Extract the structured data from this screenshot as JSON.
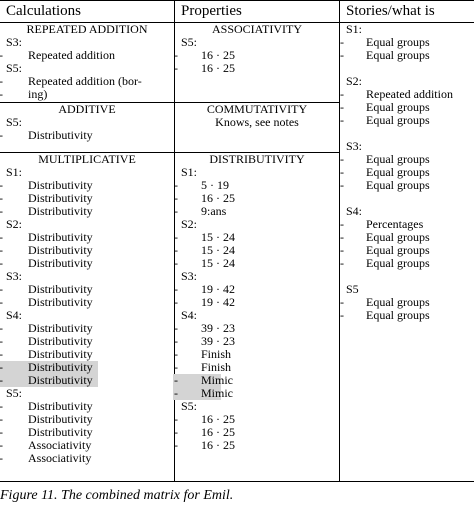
{
  "headers": [
    "Calculations",
    "Properties",
    "Stories/what is"
  ],
  "col1": {
    "sections": [
      {
        "title": "REPEATED ADDITION",
        "lines": [
          {
            "text": "S3:",
            "ind": 0
          },
          {
            "text": "Repeated addition",
            "ind": 1
          },
          {
            "text": "S5:",
            "ind": 0
          },
          {
            "text": "Repeated addition (bor-",
            "ind": 1
          },
          {
            "text": "ing)",
            "ind": 1
          }
        ]
      },
      {
        "title": "ADDITIVE",
        "lines": [
          {
            "text": "S5:",
            "ind": 0
          },
          {
            "text": "Distributivity",
            "ind": 1
          }
        ]
      },
      {
        "title": "MULTIPLICATIVE",
        "lines": [
          {
            "text": "S1:",
            "ind": 0
          },
          {
            "text": "Distributivity",
            "ind": 1
          },
          {
            "text": "Distributivity",
            "ind": 1
          },
          {
            "text": "Distributivity",
            "ind": 1
          },
          {
            "text": "S2:",
            "ind": 0
          },
          {
            "text": "Distributivity",
            "ind": 1
          },
          {
            "text": "Distributivity",
            "ind": 1
          },
          {
            "text": "Distributivity",
            "ind": 1
          },
          {
            "text": "S3:",
            "ind": 0
          },
          {
            "text": "Distributivity",
            "ind": 1
          },
          {
            "text": "Distributivity",
            "ind": 1
          },
          {
            "text": "S4:",
            "ind": 0
          },
          {
            "text": "Distributivity",
            "ind": 1
          },
          {
            "text": "Distributivity",
            "ind": 1
          },
          {
            "text": "Distributivity",
            "ind": 1
          },
          {
            "text": "Distributivity",
            "ind": 1,
            "hl": true
          },
          {
            "text": "Distributivity",
            "ind": 1,
            "hl": true
          },
          {
            "text": "S5:",
            "ind": 0
          },
          {
            "text": "Distributivity",
            "ind": 1
          },
          {
            "text": "Distributivity",
            "ind": 1
          },
          {
            "text": "Distributivity",
            "ind": 1
          },
          {
            "text": "Associativity",
            "ind": 1
          },
          {
            "text": "Associativity",
            "ind": 1
          }
        ]
      }
    ]
  },
  "col2": {
    "sections": [
      {
        "title": "ASSOCIATIVITY",
        "lines": [
          {
            "text": "S5:",
            "ind": 0
          },
          {
            "text": "16 · 25",
            "ind": 1
          },
          {
            "text": "16 · 25",
            "ind": 1
          }
        ]
      },
      {
        "title": "COMMUTATIVITY",
        "lines": [
          {
            "text": "Knows, see notes",
            "ind": 2
          }
        ]
      },
      {
        "title": "DISTRIBUTIVITY",
        "lines": [
          {
            "text": "S1:",
            "ind": 0
          },
          {
            "text": "5 · 19",
            "ind": 1
          },
          {
            "text": "16 · 25",
            "ind": 1
          },
          {
            "text": "9:ans",
            "ind": 1
          },
          {
            "text": "S2:",
            "ind": 0
          },
          {
            "text": "15 · 24",
            "ind": 1
          },
          {
            "text": "15 · 24",
            "ind": 1
          },
          {
            "text": "15 · 24",
            "ind": 1
          },
          {
            "text": "S3:",
            "ind": 0
          },
          {
            "text": "19 · 42",
            "ind": 1
          },
          {
            "text": "19 · 42",
            "ind": 1
          },
          {
            "text": "S4:",
            "ind": 0
          },
          {
            "text": "39 · 23",
            "ind": 1
          },
          {
            "text": "39 · 23",
            "ind": 1
          },
          {
            "text": "Finish",
            "ind": 1
          },
          {
            "text": "Finish",
            "ind": 1
          },
          {
            "text": "Mimic",
            "ind": 1,
            "hl": true
          },
          {
            "text": "Mimic",
            "ind": 1,
            "hl": true
          },
          {
            "text": "S5:",
            "ind": 0
          },
          {
            "text": "16 · 25",
            "ind": 1
          },
          {
            "text": "16 · 25",
            "ind": 1
          },
          {
            "text": "16 · 25",
            "ind": 1
          }
        ]
      }
    ]
  },
  "col3": {
    "lines": [
      {
        "text": "S1:",
        "ind": 0
      },
      {
        "text": "Equal groups",
        "ind": 1
      },
      {
        "text": "Equal groups",
        "ind": 1
      },
      {
        "text": "",
        "ind": 0
      },
      {
        "text": "S2:",
        "ind": 0
      },
      {
        "text": "Repeated addition",
        "ind": 1
      },
      {
        "text": "Equal groups",
        "ind": 1
      },
      {
        "text": "Equal groups",
        "ind": 1
      },
      {
        "text": "",
        "ind": 0
      },
      {
        "text": "S3:",
        "ind": 0
      },
      {
        "text": "Equal groups",
        "ind": 1
      },
      {
        "text": "Equal groups",
        "ind": 1
      },
      {
        "text": "Equal groups",
        "ind": 1
      },
      {
        "text": "",
        "ind": 0
      },
      {
        "text": "S4:",
        "ind": 0
      },
      {
        "text": "Percentages",
        "ind": 1
      },
      {
        "text": "Equal groups",
        "ind": 1
      },
      {
        "text": "Equal groups",
        "ind": 1
      },
      {
        "text": "Equal groups",
        "ind": 1
      },
      {
        "text": "",
        "ind": 0
      },
      {
        "text": "S5",
        "ind": 0
      },
      {
        "text": "Equal groups",
        "ind": 1
      },
      {
        "text": "Equal groups",
        "ind": 1
      }
    ]
  },
  "caption": "Figure 11. The combined matrix for Emil.",
  "highlight_color": "#d4d4d4"
}
